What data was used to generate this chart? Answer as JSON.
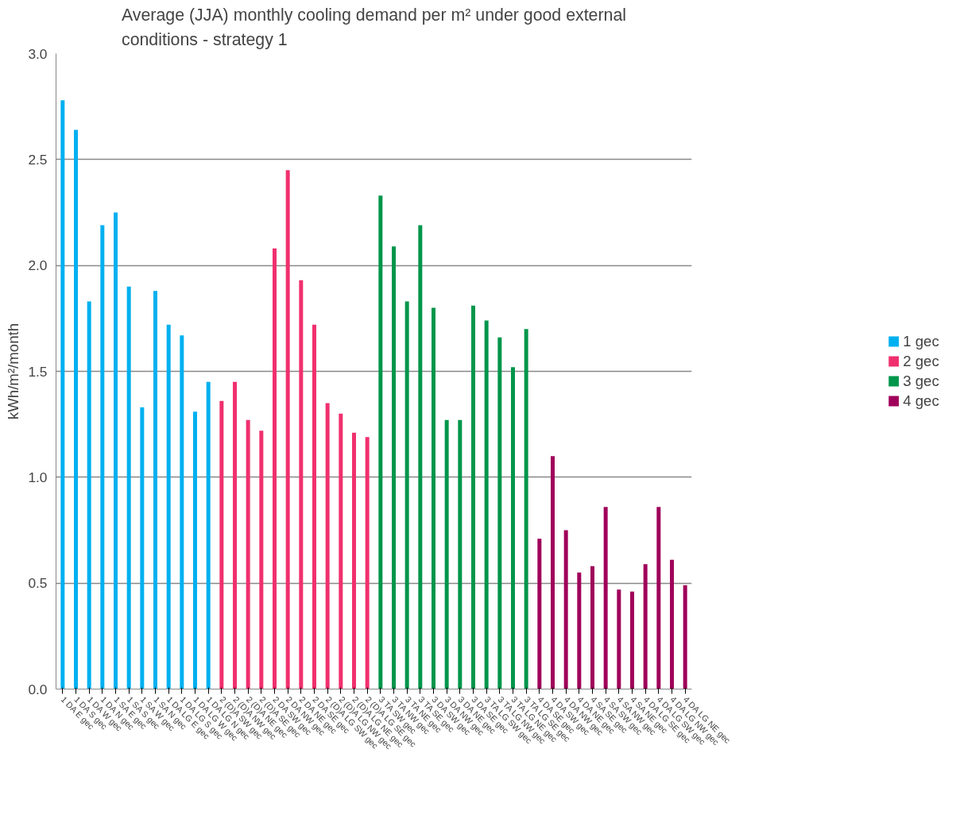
{
  "chart_data": {
    "type": "bar",
    "title": "Average (JJA) monthly cooling demand per m² under good external\nconditions - strategy 1",
    "ylabel": "kWh/m²/month",
    "categories": [
      "1 DA E gec",
      "1 DA S gec",
      "1 DA W gec",
      "1 DA N gec",
      "1 SA E gec",
      "1 SA S gec",
      "1 SA W gec",
      "1 SA N gec",
      "1 DA LG E gec",
      "1 DA LG S gec",
      "1 DA LG W gec",
      "1 DA LG N gec",
      "2 (D)A SW gec",
      "2 (D)A NW gec",
      "2 (D)A NE gec",
      "2 (D)A SE gec",
      "2 DA SW gec",
      "2 DA NW gec",
      "2 DA NE gec",
      "2 DA SE gec",
      "2 (D)A LG SW gec",
      "2 (D)A LG NW gec",
      "2 (D)A LG NE gec",
      "2 (D)A LG SE gec",
      "3 TA SW gec",
      "3 TA NW gec",
      "3 TA NE gec",
      "3 TA SE gec",
      "3 DA SW gec",
      "3 DA NW gec",
      "3 DA NE gec",
      "3 DA SE gec",
      "3 TA LG SW gec",
      "3 TA LG NW gec",
      "3 TA LG NE gec",
      "3 TA LG SE gec",
      "4 DA SE gec",
      "4 DA SW gec",
      "4 DA NW gec",
      "4 DA NE gec",
      "4 SA SE gec",
      "4 SA SW gec",
      "4 SA NW gec",
      "4 SA NE gec",
      "4 DA LG SE gec",
      "4 DA LG SW gec",
      "4 DA LG NW gec",
      "4 DA LG NE gec"
    ],
    "series": [
      {
        "name": "1 gec",
        "color": "#00b0f0",
        "values": [
          2.78,
          2.64,
          1.83,
          2.19,
          2.25,
          1.9,
          1.33,
          1.88,
          1.72,
          1.67,
          1.31,
          1.45,
          null,
          null,
          null,
          null,
          null,
          null,
          null,
          null,
          null,
          null,
          null,
          null,
          null,
          null,
          null,
          null,
          null,
          null,
          null,
          null,
          null,
          null,
          null,
          null,
          null,
          null,
          null,
          null,
          null,
          null,
          null,
          null,
          null,
          null,
          null,
          null
        ]
      },
      {
        "name": "2 gec",
        "color": "#f0306e",
        "values": [
          null,
          null,
          null,
          null,
          null,
          null,
          null,
          null,
          null,
          null,
          null,
          null,
          1.36,
          1.45,
          1.27,
          1.22,
          2.08,
          2.45,
          1.93,
          1.72,
          1.35,
          1.3,
          1.21,
          1.19,
          null,
          null,
          null,
          null,
          null,
          null,
          null,
          null,
          null,
          null,
          null,
          null,
          null,
          null,
          null,
          null,
          null,
          null,
          null,
          null,
          null,
          null,
          null,
          null
        ]
      },
      {
        "name": "3 gec",
        "color": "#00964b",
        "values": [
          null,
          null,
          null,
          null,
          null,
          null,
          null,
          null,
          null,
          null,
          null,
          null,
          null,
          null,
          null,
          null,
          null,
          null,
          null,
          null,
          null,
          null,
          null,
          null,
          2.33,
          2.09,
          1.83,
          2.19,
          1.8,
          1.27,
          1.27,
          1.81,
          1.74,
          1.66,
          1.52,
          1.7,
          null,
          null,
          null,
          null,
          null,
          null,
          null,
          null,
          null,
          null,
          null,
          null
        ]
      },
      {
        "name": "4 gec",
        "color": "#a0005a",
        "values": [
          null,
          null,
          null,
          null,
          null,
          null,
          null,
          null,
          null,
          null,
          null,
          null,
          null,
          null,
          null,
          null,
          null,
          null,
          null,
          null,
          null,
          null,
          null,
          null,
          null,
          null,
          null,
          null,
          null,
          null,
          null,
          null,
          null,
          null,
          null,
          null,
          0.71,
          1.1,
          0.75,
          0.55,
          0.58,
          0.86,
          0.47,
          0.46,
          0.59,
          0.86,
          0.61,
          0.49
        ]
      }
    ],
    "ylim": [
      0,
      3
    ],
    "yticks": [
      {
        "value": 0,
        "label": "0.0"
      },
      {
        "value": 0.5,
        "label": "0.5"
      },
      {
        "value": 1,
        "label": "1.0"
      },
      {
        "value": 1.5,
        "label": "1.5"
      },
      {
        "value": 2,
        "label": "2.0"
      },
      {
        "value": 2.5,
        "label": "2.5"
      },
      {
        "value": 3,
        "label": "3.0"
      }
    ],
    "grid": "y",
    "legend": "right"
  }
}
